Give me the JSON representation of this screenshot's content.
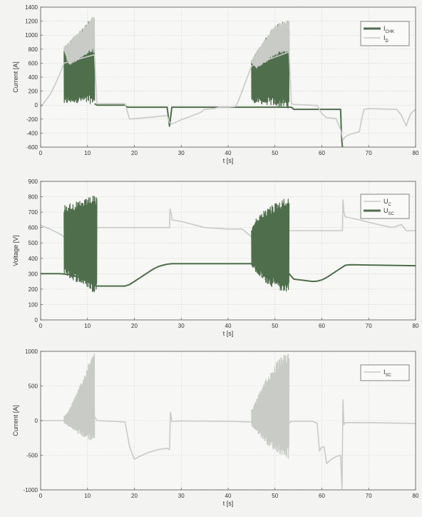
{
  "colors": {
    "background": "#f3f3f1",
    "axes_bg": "#f7f7f5",
    "dark_series": "#4f6e4c",
    "light_series": "#c9cbc7",
    "grid": "#c9c9c6",
    "frame": "#555555",
    "text": "#333333"
  },
  "chart_data": [
    {
      "type": "line",
      "xlabel": "t [s]",
      "ylabel": "Current [A]",
      "xlim": [
        0,
        80
      ],
      "ylim": [
        -600,
        1400
      ],
      "xticks": [
        0,
        10,
        20,
        30,
        40,
        50,
        60,
        70,
        80
      ],
      "yticks": [
        -600,
        -400,
        -200,
        0,
        200,
        400,
        600,
        800,
        1000,
        1200,
        1400
      ],
      "grid": true,
      "legend_position": "top-right",
      "series": [
        {
          "name": "I_CHK",
          "color": "dark",
          "style": "oscillating",
          "envelopes": [
            {
              "x": [
                5,
                6,
                7,
                8,
                9,
                10,
                11,
                11.5
              ],
              "upper": [
                840,
                900,
                980,
                1040,
                1100,
                1180,
                1260,
                1280
              ],
              "lower": [
                0,
                20,
                30,
                30,
                20,
                10,
                20,
                10
              ]
            },
            {
              "x": [
                45,
                46,
                47,
                48,
                49,
                50,
                51,
                52,
                53
              ],
              "upper": [
                640,
                760,
                860,
                960,
                1060,
                1140,
                1180,
                1200,
                1220
              ],
              "lower": [
                40,
                20,
                10,
                0,
                -10,
                -20,
                -30,
                -40,
                -50
              ]
            }
          ],
          "x": [
            11.5,
            12,
            18,
            18.5,
            27,
            27.5,
            28,
            53.5,
            54,
            64,
            64.2,
            64.4
          ],
          "y": [
            20,
            0,
            0,
            -30,
            -30,
            -300,
            -30,
            -30,
            -60,
            -60,
            -450,
            -600
          ]
        },
        {
          "name": "I_D",
          "color": "light",
          "style": "line",
          "envelopes": [
            {
              "x": [
                5,
                6,
                7,
                8,
                9,
                10,
                11,
                11.5
              ],
              "upper": [
                840,
                900,
                980,
                1040,
                1100,
                1180,
                1260,
                1280
              ],
              "lower": [
                780,
                560,
                600,
                640,
                680,
                720,
                760,
                720
              ]
            },
            {
              "x": [
                45,
                46,
                47,
                48,
                49,
                50,
                51,
                52,
                53
              ],
              "upper": [
                640,
                760,
                860,
                960,
                1060,
                1140,
                1180,
                1200,
                1220
              ],
              "lower": [
                600,
                520,
                560,
                600,
                650,
                700,
                720,
                740,
                760
              ]
            }
          ],
          "x": [
            0,
            1,
            2,
            3,
            4,
            5,
            11.5,
            12,
            18,
            19,
            27,
            27.5,
            28,
            29,
            30,
            32,
            34,
            35,
            37,
            38,
            40,
            41.5,
            42,
            43,
            44,
            45,
            53,
            53.5,
            54,
            59,
            60,
            61,
            63,
            64,
            64.5,
            65,
            66,
            67,
            68,
            68.5,
            69,
            70,
            75,
            76,
            77,
            78,
            78.5,
            79,
            80
          ],
          "y": [
            -30,
            60,
            150,
            280,
            430,
            600,
            720,
            20,
            20,
            -200,
            -150,
            -250,
            -270,
            -240,
            -210,
            -160,
            -110,
            -60,
            -50,
            -30,
            -30,
            -20,
            30,
            200,
            380,
            560,
            760,
            20,
            10,
            -5,
            -120,
            -180,
            -190,
            -350,
            -500,
            -450,
            -420,
            -400,
            -380,
            -200,
            -60,
            -50,
            -60,
            -60,
            -150,
            -300,
            -200,
            -120,
            -60
          ]
        }
      ]
    },
    {
      "type": "line",
      "xlabel": "t [s]",
      "ylabel": "Voltage [V]",
      "xlim": [
        0,
        80
      ],
      "ylim": [
        0,
        900
      ],
      "xticks": [
        0,
        10,
        20,
        30,
        40,
        50,
        60,
        70,
        80
      ],
      "yticks": [
        0,
        100,
        200,
        300,
        400,
        500,
        600,
        700,
        800,
        900
      ],
      "grid": true,
      "legend_position": "top-right",
      "series": [
        {
          "name": "U_C",
          "color": "light",
          "style": "line",
          "x": [
            0,
            2,
            4,
            5,
            11.5,
            12,
            27.5,
            27.6,
            27.9,
            28,
            30,
            35,
            40,
            43,
            45,
            46,
            53,
            53.5,
            64.4,
            64.5,
            64.7,
            65,
            68,
            72,
            75,
            77,
            78,
            79,
            80
          ],
          "y": [
            615,
            590,
            560,
            540,
            210,
            600,
            600,
            720,
            690,
            650,
            640,
            600,
            590,
            590,
            540,
            510,
            580,
            580,
            580,
            780,
            700,
            670,
            650,
            620,
            600,
            620,
            580,
            580,
            580
          ]
        },
        {
          "name": "U_SC",
          "color": "dark",
          "style": "oscillating",
          "envelopes": [
            {
              "x": [
                5,
                6,
                8,
                10,
                11,
                12
              ],
              "upper": [
                750,
                760,
                770,
                790,
                810,
                800
              ],
              "lower": [
                300,
                270,
                240,
                210,
                180,
                180
              ]
            },
            {
              "x": [
                45,
                46,
                48,
                50,
                52,
                53
              ],
              "upper": [
                590,
                660,
                720,
                760,
                790,
                790
              ],
              "lower": [
                350,
                300,
                240,
                200,
                180,
                180
              ]
            }
          ],
          "x": [
            0,
            4,
            6,
            8,
            10,
            12,
            17,
            18,
            19,
            20,
            21,
            22,
            23,
            24,
            25,
            26,
            27,
            28,
            40,
            43,
            45,
            47,
            49,
            51,
            53,
            54,
            58,
            59,
            60,
            61,
            62,
            63,
            64,
            65,
            66,
            80
          ],
          "y": [
            300,
            300,
            295,
            280,
            250,
            220,
            220,
            220,
            230,
            250,
            270,
            290,
            310,
            330,
            345,
            355,
            362,
            365,
            365,
            365,
            365,
            360,
            345,
            325,
            300,
            265,
            250,
            252,
            260,
            275,
            295,
            315,
            335,
            355,
            358,
            352
          ]
        }
      ]
    },
    {
      "type": "line",
      "xlabel": "t [s]",
      "ylabel": "Current [A]",
      "xlim": [
        0,
        80
      ],
      "ylim": [
        -1000,
        1000
      ],
      "xticks": [
        0,
        10,
        20,
        30,
        40,
        50,
        60,
        70,
        80
      ],
      "yticks": [
        -1000,
        -500,
        0,
        500,
        1000
      ],
      "grid": true,
      "legend_position": "top-right",
      "series": [
        {
          "name": "I_SC",
          "color": "light",
          "style": "oscillating",
          "envelopes": [
            {
              "x": [
                5,
                6,
                7,
                8,
                9,
                10,
                11,
                11.5
              ],
              "upper": [
                60,
                150,
                300,
                450,
                600,
                800,
                980,
                1000
              ],
              "lower": [
                -40,
                -90,
                -140,
                -200,
                -240,
                -280,
                -300,
                -320
              ]
            },
            {
              "x": [
                45,
                46,
                47,
                48,
                49,
                50,
                51,
                52,
                53
              ],
              "upper": [
                160,
                300,
                450,
                600,
                700,
                820,
                900,
                960,
                1000
              ],
              "lower": [
                -80,
                -160,
                -240,
                -320,
                -400,
                -440,
                -480,
                -520,
                -560
              ]
            }
          ],
          "x": [
            0,
            5,
            11.5,
            12,
            18,
            19,
            20,
            21,
            23,
            25,
            27,
            27.5,
            27.7,
            28,
            30,
            40,
            45,
            53,
            53.5,
            58,
            59,
            59.5,
            60,
            60.5,
            61,
            62,
            63,
            64,
            64.3,
            64.5,
            64.7,
            65,
            70,
            80
          ],
          "y": [
            0,
            0,
            60,
            0,
            -20,
            -380,
            -560,
            -520,
            -460,
            -420,
            -400,
            -420,
            120,
            -10,
            -5,
            -10,
            -20,
            -40,
            -10,
            -10,
            -40,
            -440,
            -380,
            -380,
            -620,
            -560,
            -520,
            -500,
            -980,
            300,
            -60,
            -30,
            -30,
            -40
          ]
        }
      ]
    }
  ]
}
